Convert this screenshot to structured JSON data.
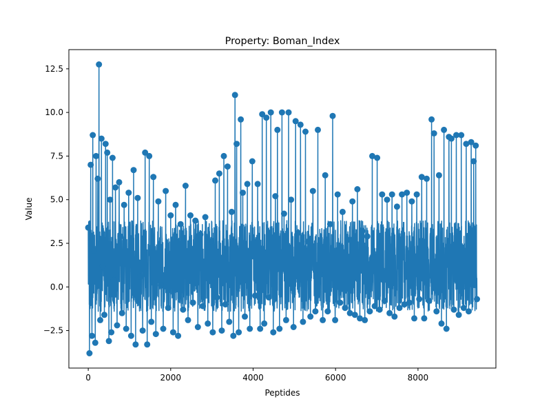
{
  "chart_data": {
    "type": "line",
    "title": "Property: Boman_Index",
    "xlabel": "Peptides",
    "ylabel": "Value",
    "xlim": [
      -470,
      9890
    ],
    "ylim": [
      -4.65,
      13.6
    ],
    "xticks": [
      0,
      2000,
      4000,
      6000,
      8000
    ],
    "xtick_labels": [
      "0",
      "2000",
      "4000",
      "6000",
      "8000"
    ],
    "yticks": [
      -2.5,
      0.0,
      2.5,
      5.0,
      7.5,
      10.0,
      12.5
    ],
    "ytick_labels": [
      "−2.5",
      "0.0",
      "2.5",
      "5.0",
      "7.5",
      "10.0",
      "12.5"
    ],
    "grid": false,
    "legend": "none",
    "marker": "circle",
    "n_points": 9430,
    "series": [
      {
        "color": "#1f77b4",
        "x": [
          0,
          30,
          60,
          90,
          110,
          140,
          170,
          190,
          230,
          260,
          290,
          320,
          350,
          390,
          420,
          460,
          500,
          530,
          560,
          590,
          620,
          660,
          700,
          750,
          780,
          820,
          870,
          920,
          980,
          1040,
          1100,
          1150,
          1200,
          1260,
          1320,
          1380,
          1430,
          1480,
          1530,
          1580,
          1640,
          1700,
          1760,
          1820,
          1880,
          1940,
          2000,
          2060,
          2120,
          2180,
          2240,
          2300,
          2360,
          2420,
          2480,
          2540,
          2600,
          2660,
          2720,
          2780,
          2840,
          2900,
          2960,
          3020,
          3080,
          3120,
          3180,
          3240,
          3290,
          3330,
          3380,
          3420,
          3480,
          3520,
          3560,
          3600,
          3650,
          3700,
          3750,
          3800,
          3860,
          3920,
          3980,
          4050,
          4110,
          4170,
          4220,
          4270,
          4320,
          4380,
          4430,
          4490,
          4540,
          4590,
          4640,
          4700,
          4750,
          4800,
          4860,
          4920,
          4980,
          5030,
          5090,
          5150,
          5210,
          5270,
          5330,
          5390,
          5450,
          5510,
          5570,
          5630,
          5690,
          5750,
          5810,
          5870,
          5930,
          5990,
          6050,
          6110,
          6170,
          6230,
          6290,
          6350,
          6410,
          6470,
          6530,
          6590,
          6650,
          6710,
          6770,
          6830,
          6890,
          6950,
          7010,
          7070,
          7130,
          7190,
          7250,
          7310,
          7370,
          7430,
          7490,
          7550,
          7610,
          7670,
          7730,
          7790,
          7850,
          7910,
          7970,
          8030,
          8090,
          8150,
          8210,
          8270,
          8330,
          8390,
          8450,
          8510,
          8570,
          8630,
          8690,
          8750,
          8810,
          8870,
          8930,
          8990,
          9050,
          9110,
          9170,
          9230,
          9290,
          9350,
          9400,
          9430
        ],
        "y": [
          3.4,
          -3.8,
          7.0,
          -2.8,
          8.7,
          2.1,
          -3.2,
          7.5,
          6.2,
          12.75,
          -1.9,
          8.5,
          1.2,
          -1.6,
          8.2,
          7.7,
          -3.1,
          5.0,
          -2.6,
          7.4,
          0.4,
          5.7,
          -2.2,
          6.0,
          2.9,
          -1.5,
          4.7,
          -2.4,
          5.4,
          -2.8,
          6.7,
          -3.3,
          5.1,
          0.6,
          -2.5,
          7.7,
          -3.3,
          7.5,
          -2.0,
          6.3,
          -2.7,
          4.9,
          0.1,
          -2.4,
          5.5,
          -1.2,
          4.1,
          -2.6,
          4.7,
          -2.8,
          3.6,
          -1.3,
          5.8,
          -1.9,
          4.1,
          -0.9,
          3.8,
          -2.3,
          3.0,
          -1.1,
          4.0,
          -2.1,
          2.6,
          -2.6,
          6.1,
          -0.6,
          6.5,
          -2.5,
          7.5,
          -1.0,
          6.9,
          -2.0,
          4.3,
          -2.8,
          11.0,
          8.2,
          -2.6,
          9.6,
          5.4,
          -1.7,
          5.9,
          -2.4,
          7.2,
          -0.5,
          5.9,
          -2.4,
          9.9,
          -2.1,
          9.7,
          -0.6,
          10.0,
          -2.6,
          5.2,
          9.0,
          -2.4,
          10.0,
          4.2,
          -1.9,
          10.0,
          5.0,
          -2.3,
          9.5,
          3.1,
          9.3,
          -2.0,
          8.9,
          2.6,
          -1.7,
          5.5,
          -1.4,
          9.0,
          0.7,
          -1.9,
          6.4,
          -1.4,
          3.6,
          9.8,
          -1.9,
          5.3,
          -0.9,
          4.3,
          -1.2,
          2.7,
          -1.5,
          4.9,
          -1.6,
          5.6,
          -1.8,
          3.2,
          -1.9,
          2.9,
          -1.4,
          7.5,
          -1.1,
          7.4,
          -1.3,
          5.3,
          -0.8,
          5.0,
          -1.5,
          5.3,
          -1.7,
          4.6,
          -1.2,
          5.3,
          -1.0,
          5.4,
          -0.9,
          4.9,
          -1.8,
          5.3,
          -0.7,
          6.3,
          -1.8,
          6.2,
          -0.8,
          9.6,
          8.8,
          -1.4,
          6.4,
          -2.1,
          9.0,
          -2.4,
          8.6,
          8.5,
          -1.3,
          8.7,
          -1.6,
          8.7,
          -1.2,
          8.2,
          -1.4,
          8.3,
          7.2,
          8.1,
          -0.7
        ]
      }
    ]
  }
}
